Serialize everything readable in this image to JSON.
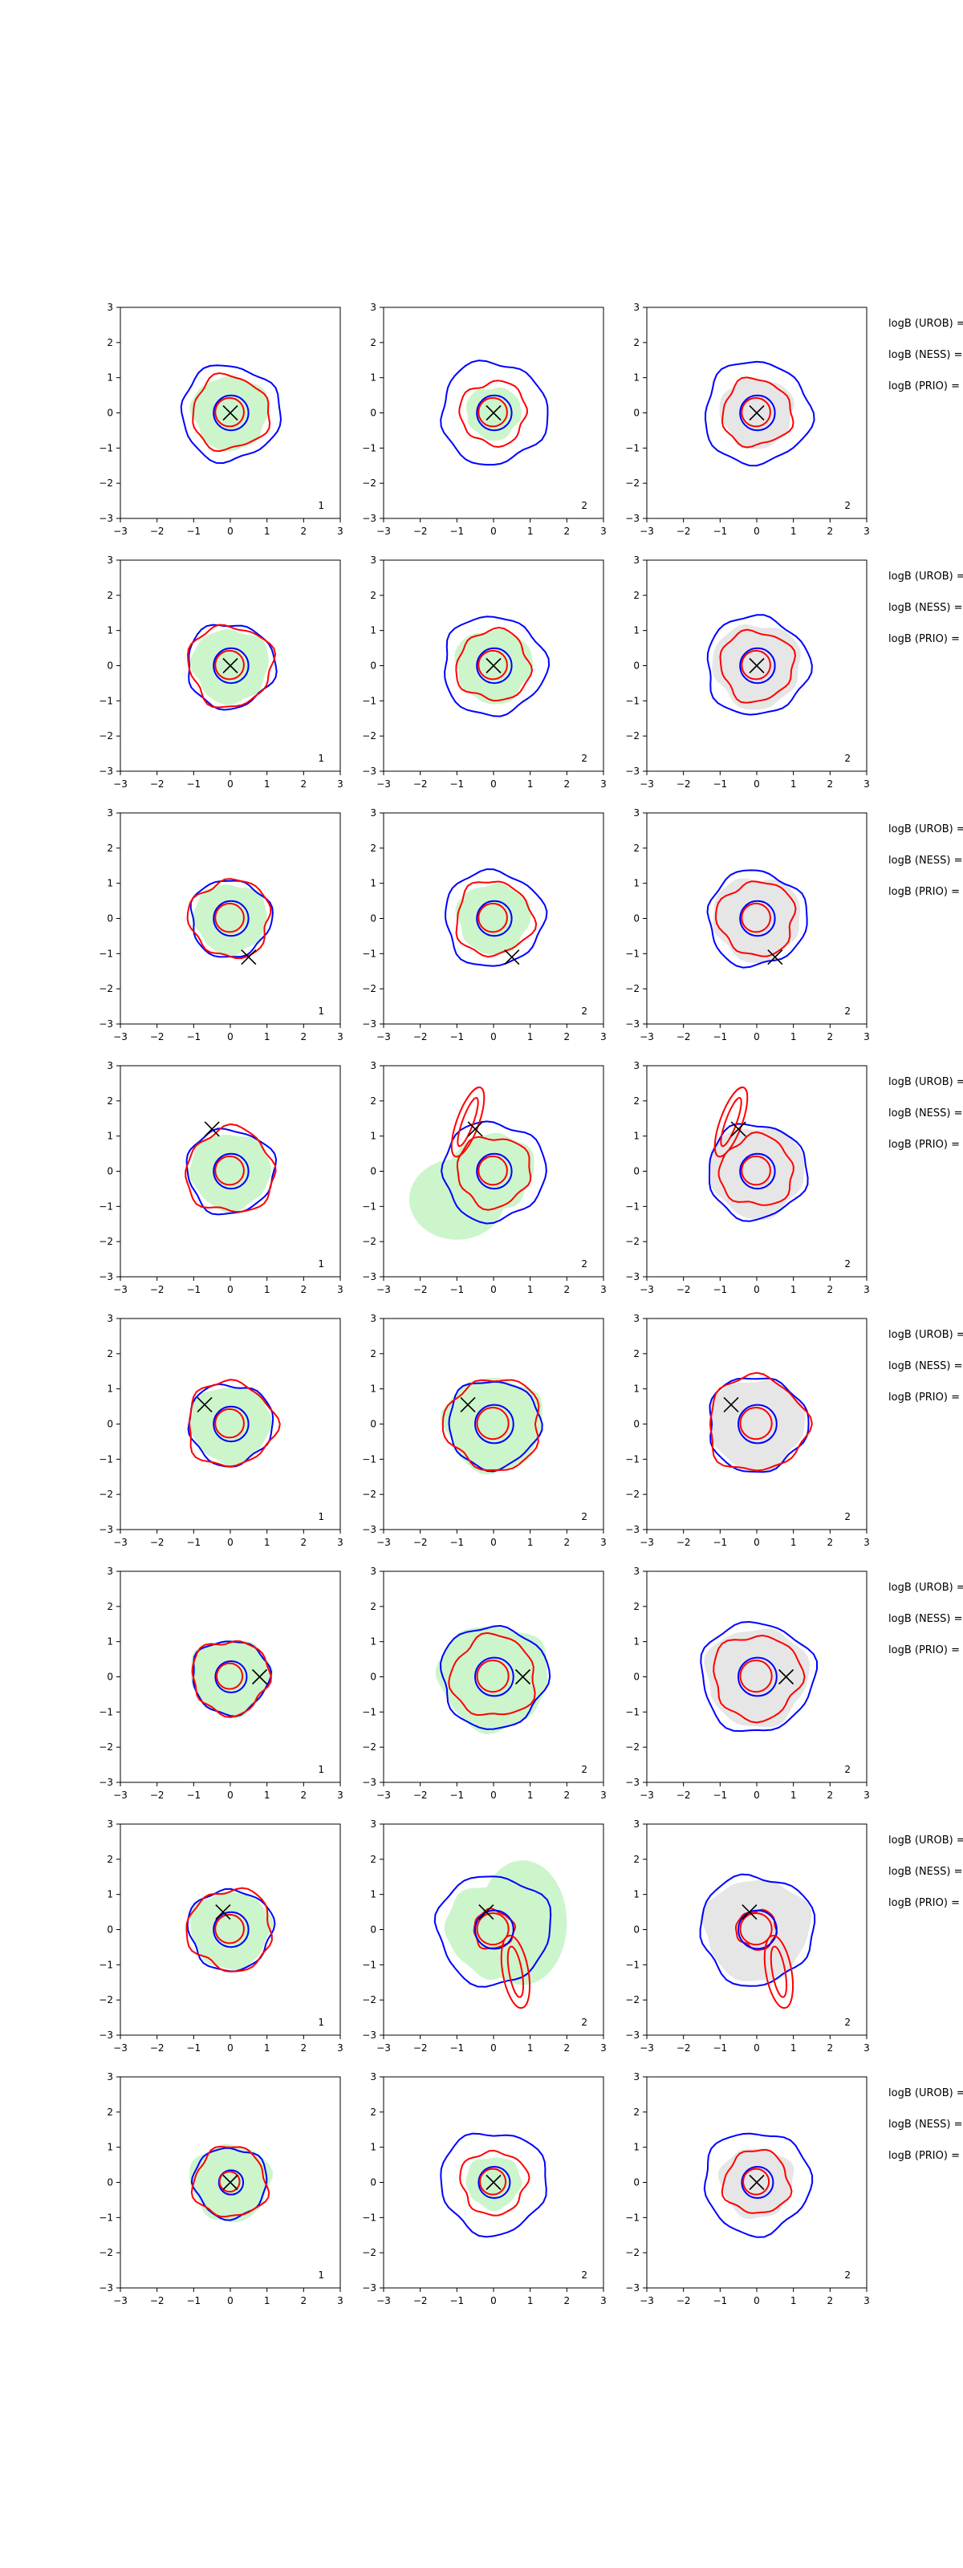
{
  "chart_data": {
    "type": "contour",
    "layout": {
      "rows": 8,
      "cols": 3
    },
    "axes": {
      "xlim": [
        -3,
        3
      ],
      "ylim": [
        -3,
        3
      ],
      "ticks": [
        -3,
        -2,
        -1,
        0,
        1,
        2,
        3
      ],
      "grid": false
    },
    "colors": {
      "outer_contour": "#0000ff",
      "inner_contour": "#ff0000",
      "fill_col1": "#ccf5cc",
      "fill_col2": "#ccf5cc",
      "fill_col3": "#e6e6e6",
      "marker": "#000000"
    },
    "panel_index_labels": [
      "1",
      "2",
      "2"
    ],
    "side_labels": [
      "logB (UROB) =",
      "logB (NESS) =",
      "logB (PRIO) ="
    ],
    "rows": [
      {
        "marker": [
          0.0,
          0.0
        ],
        "panels": [
          {
            "outer_r": 1.35,
            "inner_r": 1.05,
            "core_r": 0.5,
            "fill_r": 1.05,
            "lobe": null
          },
          {
            "outer_r": 1.45,
            "inner_r": 0.9,
            "core_r": 0.5,
            "fill_r": 0.75,
            "lobe": null
          },
          {
            "outer_r": 1.45,
            "inner_r": 0.95,
            "core_r": 0.5,
            "fill_r": 1.0,
            "lobe": null
          }
        ]
      },
      {
        "marker": [
          0.0,
          0.0
        ],
        "panels": [
          {
            "outer_r": 1.2,
            "inner_r": 1.15,
            "core_r": 0.5,
            "fill_r": 1.05,
            "lobe": null
          },
          {
            "outer_r": 1.4,
            "inner_r": 1.0,
            "core_r": 0.5,
            "fill_r": 1.05,
            "lobe": null
          },
          {
            "outer_r": 1.4,
            "inner_r": 1.0,
            "core_r": 0.5,
            "fill_r": 1.2,
            "lobe": null
          }
        ]
      },
      {
        "marker": [
          0.5,
          -1.1
        ],
        "panels": [
          {
            "outer_r": 1.1,
            "inner_r": 1.1,
            "core_r": 0.5,
            "fill_r": 1.0,
            "lobe": null
          },
          {
            "outer_r": 1.35,
            "inner_r": 1.05,
            "core_r": 0.5,
            "fill_r": 1.0,
            "lobe": null
          },
          {
            "outer_r": 1.35,
            "inner_r": 1.05,
            "core_r": 0.5,
            "fill_r": 1.2,
            "lobe": null
          }
        ]
      },
      {
        "marker": [
          -0.5,
          1.2
        ],
        "panels": [
          {
            "outer_r": 1.2,
            "inner_r": 1.2,
            "core_r": 0.5,
            "fill_r": 1.1,
            "lobe": null
          },
          {
            "outer_r": 1.4,
            "inner_r": 1.0,
            "core_r": 0.5,
            "fill_r": 1.1,
            "lobe": {
              "cx": -0.7,
              "cy": 1.4,
              "rx": 0.3,
              "ry": 1.0,
              "rot": 20,
              "green": {
                "cx": -1.0,
                "cy": -0.8,
                "rx": 1.3,
                "ry": 1.1
              }
            }
          },
          {
            "outer_r": 1.35,
            "inner_r": 1.0,
            "core_r": 0.5,
            "fill_r": 1.3,
            "lobe": {
              "cx": -0.7,
              "cy": 1.4,
              "rx": 0.3,
              "ry": 1.0,
              "rot": 20,
              "green": null
            }
          }
        ]
      },
      {
        "marker": [
          -0.7,
          0.55
        ],
        "panels": [
          {
            "outer_r": 1.15,
            "inner_r": 1.2,
            "core_r": 0.5,
            "fill_r": 1.1,
            "lobe": null
          },
          {
            "outer_r": 1.25,
            "inner_r": 1.3,
            "core_r": 0.55,
            "fill_r": 1.35,
            "lobe": null
          },
          {
            "outer_r": 1.35,
            "inner_r": 1.35,
            "core_r": 0.55,
            "fill_r": 1.3,
            "lobe": null
          }
        ]
      },
      {
        "marker": [
          0.8,
          0.0
        ],
        "panels": [
          {
            "outer_r": 1.05,
            "inner_r": 1.05,
            "core_r": 0.45,
            "fill_r": 1.1,
            "lobe": null
          },
          {
            "outer_r": 1.45,
            "inner_r": 1.15,
            "core_r": 0.55,
            "fill_r": 1.5,
            "lobe": null
          },
          {
            "outer_r": 1.55,
            "inner_r": 1.2,
            "core_r": 0.55,
            "fill_r": 1.4,
            "lobe": null
          }
        ]
      },
      {
        "marker": [
          -0.2,
          0.5
        ],
        "panels": [
          {
            "outer_r": 1.15,
            "inner_r": 1.15,
            "core_r": 0.5,
            "fill_r": 1.1,
            "lobe": null
          },
          {
            "outer_r": 1.55,
            "inner_r": 0.55,
            "core_r": 0.55,
            "fill_r": 1.3,
            "lobe": {
              "cx": 0.6,
              "cy": -1.2,
              "rx": 0.35,
              "ry": 1.0,
              "rot": -10,
              "green": {
                "cx": 0.8,
                "cy": 0.2,
                "rx": 1.2,
                "ry": 1.7
              }
            }
          },
          {
            "outer_r": 1.55,
            "inner_r": 0.55,
            "core_r": 0.55,
            "fill_r": 1.45,
            "lobe": {
              "cx": 0.6,
              "cy": -1.2,
              "rx": 0.35,
              "ry": 1.0,
              "rot": -10,
              "green": null
            }
          }
        ]
      },
      {
        "marker": [
          0.0,
          0.0
        ],
        "panels": [
          {
            "outer_r": 1.0,
            "inner_r": 1.0,
            "core_r": 0.35,
            "fill_r": 1.1,
            "lobe": null
          },
          {
            "outer_r": 1.45,
            "inner_r": 0.9,
            "core_r": 0.45,
            "fill_r": 0.75,
            "lobe": null
          },
          {
            "outer_r": 1.45,
            "inner_r": 0.9,
            "core_r": 0.45,
            "fill_r": 1.0,
            "lobe": null
          }
        ]
      }
    ]
  }
}
